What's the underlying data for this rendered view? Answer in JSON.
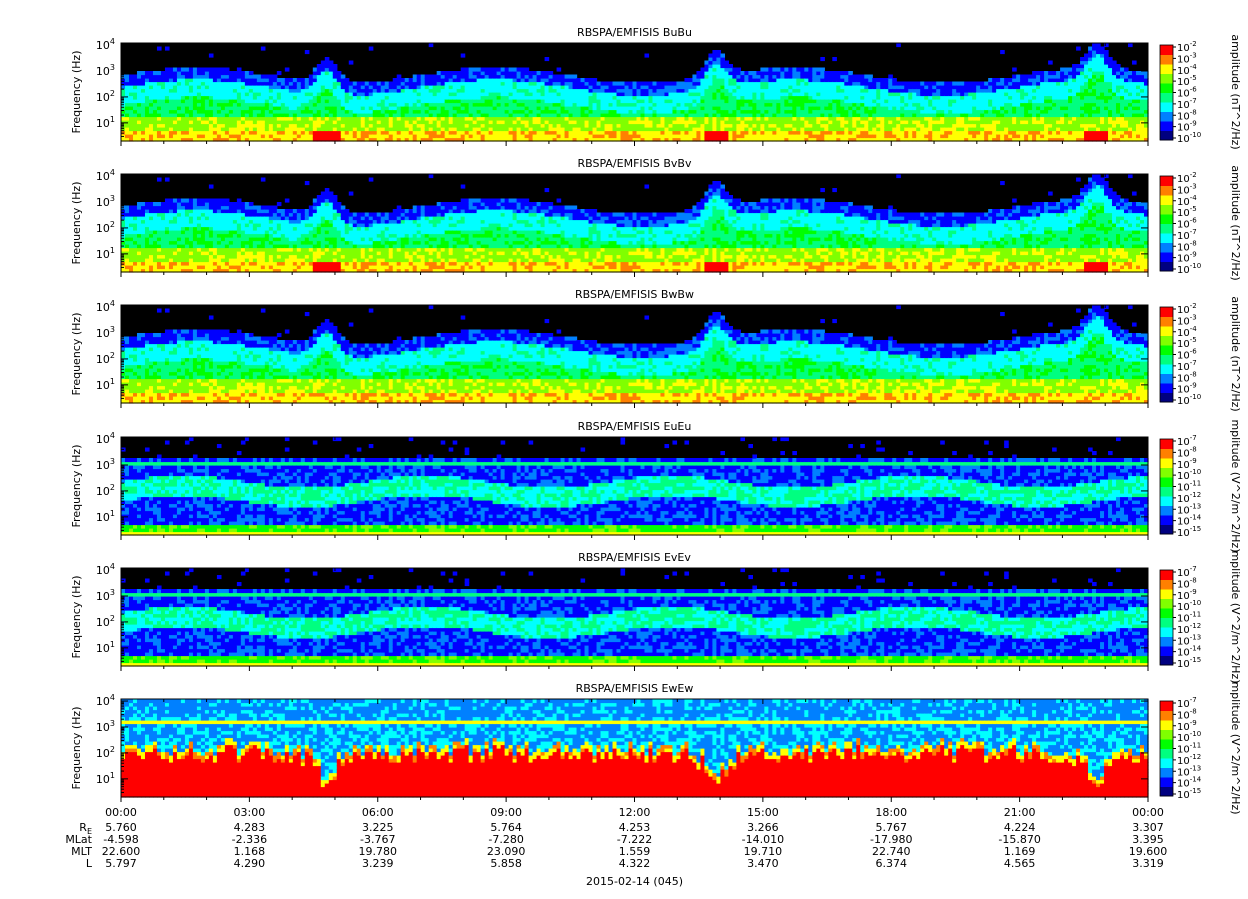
{
  "colors": {
    "background": "#000000",
    "scale": [
      "#000080",
      "#0000ff",
      "#0080ff",
      "#00ffff",
      "#00ff80",
      "#00ff00",
      "#80ff00",
      "#ffff00",
      "#ff8000",
      "#ff0000"
    ]
  },
  "chart_data": [
    {
      "type": "heatmap",
      "title": "RBSPA/EMFISIS  BuBu",
      "ylabel": "Frequency (Hz)",
      "yscale": "log",
      "ylim": [
        2,
        12000
      ],
      "yticks": [
        {
          "base": "10",
          "exp": "1",
          "v": 10
        },
        {
          "base": "10",
          "exp": "2",
          "v": 100
        },
        {
          "base": "10",
          "exp": "3",
          "v": 1000
        },
        {
          "base": "10",
          "exp": "4",
          "v": 10000
        }
      ],
      "colorbar": {
        "label": "amplitude (nT^2/Hz)",
        "ticks": [
          {
            "base": "10",
            "exp": "-2"
          },
          {
            "base": "10",
            "exp": "-3"
          },
          {
            "base": "10",
            "exp": "-4"
          },
          {
            "base": "10",
            "exp": "-5"
          },
          {
            "base": "10",
            "exp": "-6"
          },
          {
            "base": "10",
            "exp": "-7"
          },
          {
            "base": "10",
            "exp": "-8"
          },
          {
            "base": "10",
            "exp": "-9"
          },
          {
            "base": "10",
            "exp": "-10"
          }
        ]
      },
      "kind": "b"
    },
    {
      "type": "heatmap",
      "title": "RBSPA/EMFISIS  BvBv",
      "ylabel": "Frequency (Hz)",
      "yscale": "log",
      "ylim": [
        2,
        12000
      ],
      "yticks": [
        {
          "base": "10",
          "exp": "1",
          "v": 10
        },
        {
          "base": "10",
          "exp": "2",
          "v": 100
        },
        {
          "base": "10",
          "exp": "3",
          "v": 1000
        },
        {
          "base": "10",
          "exp": "4",
          "v": 10000
        }
      ],
      "colorbar": {
        "label": "amplitude (nT^2/Hz)",
        "ticks": [
          {
            "base": "10",
            "exp": "-2"
          },
          {
            "base": "10",
            "exp": "-3"
          },
          {
            "base": "10",
            "exp": "-4"
          },
          {
            "base": "10",
            "exp": "-5"
          },
          {
            "base": "10",
            "exp": "-6"
          },
          {
            "base": "10",
            "exp": "-7"
          },
          {
            "base": "10",
            "exp": "-8"
          },
          {
            "base": "10",
            "exp": "-9"
          },
          {
            "base": "10",
            "exp": "-10"
          }
        ]
      },
      "kind": "b"
    },
    {
      "type": "heatmap",
      "title": "RBSPA/EMFISIS  BwBw",
      "ylabel": "Frequency (Hz)",
      "yscale": "log",
      "ylim": [
        2,
        12000
      ],
      "yticks": [
        {
          "base": "10",
          "exp": "1",
          "v": 10
        },
        {
          "base": "10",
          "exp": "2",
          "v": 100
        },
        {
          "base": "10",
          "exp": "3",
          "v": 1000
        },
        {
          "base": "10",
          "exp": "4",
          "v": 10000
        }
      ],
      "colorbar": {
        "label": "amplitude (nT^2/Hz)",
        "ticks": [
          {
            "base": "10",
            "exp": "-2"
          },
          {
            "base": "10",
            "exp": "-3"
          },
          {
            "base": "10",
            "exp": "-4"
          },
          {
            "base": "10",
            "exp": "-5"
          },
          {
            "base": "10",
            "exp": "-6"
          },
          {
            "base": "10",
            "exp": "-7"
          },
          {
            "base": "10",
            "exp": "-8"
          },
          {
            "base": "10",
            "exp": "-9"
          },
          {
            "base": "10",
            "exp": "-10"
          }
        ]
      },
      "kind": "bw"
    },
    {
      "type": "heatmap",
      "title": "RBSPA/EMFISIS  EuEu",
      "ylabel": "Frequency (Hz)",
      "yscale": "log",
      "ylim": [
        2,
        12000
      ],
      "yticks": [
        {
          "base": "10",
          "exp": "1",
          "v": 10
        },
        {
          "base": "10",
          "exp": "2",
          "v": 100
        },
        {
          "base": "10",
          "exp": "3",
          "v": 1000
        },
        {
          "base": "10",
          "exp": "4",
          "v": 10000
        }
      ],
      "colorbar": {
        "label": "mplitude (V^2/m^2/Hz)",
        "ticks": [
          {
            "base": "10",
            "exp": "-7"
          },
          {
            "base": "10",
            "exp": "-8"
          },
          {
            "base": "10",
            "exp": "-9"
          },
          {
            "base": "10",
            "exp": "-10"
          },
          {
            "base": "10",
            "exp": "-11"
          },
          {
            "base": "10",
            "exp": "-12"
          },
          {
            "base": "10",
            "exp": "-13"
          },
          {
            "base": "10",
            "exp": "-14"
          },
          {
            "base": "10",
            "exp": "-15"
          }
        ]
      },
      "kind": "e"
    },
    {
      "type": "heatmap",
      "title": "RBSPA/EMFISIS  EvEv",
      "ylabel": "Frequency (Hz)",
      "yscale": "log",
      "ylim": [
        2,
        12000
      ],
      "yticks": [
        {
          "base": "10",
          "exp": "1",
          "v": 10
        },
        {
          "base": "10",
          "exp": "2",
          "v": 100
        },
        {
          "base": "10",
          "exp": "3",
          "v": 1000
        },
        {
          "base": "10",
          "exp": "4",
          "v": 10000
        }
      ],
      "colorbar": {
        "label": "mplitude (V^2/m^2/Hz)",
        "ticks": [
          {
            "base": "10",
            "exp": "-7"
          },
          {
            "base": "10",
            "exp": "-8"
          },
          {
            "base": "10",
            "exp": "-9"
          },
          {
            "base": "10",
            "exp": "-10"
          },
          {
            "base": "10",
            "exp": "-11"
          },
          {
            "base": "10",
            "exp": "-12"
          },
          {
            "base": "10",
            "exp": "-13"
          },
          {
            "base": "10",
            "exp": "-14"
          },
          {
            "base": "10",
            "exp": "-15"
          }
        ]
      },
      "kind": "e"
    },
    {
      "type": "heatmap",
      "title": "RBSPA/EMFISIS  EwEw",
      "ylabel": "Frequency (Hz)",
      "yscale": "log",
      "ylim": [
        2,
        12000
      ],
      "yticks": [
        {
          "base": "10",
          "exp": "1",
          "v": 10
        },
        {
          "base": "10",
          "exp": "2",
          "v": 100
        },
        {
          "base": "10",
          "exp": "3",
          "v": 1000
        },
        {
          "base": "10",
          "exp": "4",
          "v": 10000
        }
      ],
      "colorbar": {
        "label": "mplitude (V^2/m^2/Hz)",
        "ticks": [
          {
            "base": "10",
            "exp": "-7"
          },
          {
            "base": "10",
            "exp": "-8"
          },
          {
            "base": "10",
            "exp": "-9"
          },
          {
            "base": "10",
            "exp": "-10"
          },
          {
            "base": "10",
            "exp": "-11"
          },
          {
            "base": "10",
            "exp": "-12"
          },
          {
            "base": "10",
            "exp": "-13"
          },
          {
            "base": "10",
            "exp": "-14"
          },
          {
            "base": "10",
            "exp": "-15"
          }
        ]
      },
      "kind": "ew"
    }
  ],
  "x_axis": {
    "xlim_hours": [
      0,
      24
    ],
    "ticks": [
      {
        "label": "00:00",
        "hour": 0
      },
      {
        "label": "03:00",
        "hour": 3
      },
      {
        "label": "06:00",
        "hour": 6
      },
      {
        "label": "09:00",
        "hour": 9
      },
      {
        "label": "12:00",
        "hour": 12
      },
      {
        "label": "15:00",
        "hour": 15
      },
      {
        "label": "18:00",
        "hour": 18
      },
      {
        "label": "21:00",
        "hour": 21
      },
      {
        "label": "00:00",
        "hour": 24
      }
    ],
    "date_label": "2015-02-14 (045)"
  },
  "ephemeris": [
    {
      "name": "R",
      "sub": "E",
      "values": [
        "5.760",
        "4.283",
        "3.225",
        "5.764",
        "4.253",
        "3.266",
        "5.767",
        "4.224",
        "3.307"
      ]
    },
    {
      "name": "MLat",
      "values": [
        "-4.598",
        "-2.336",
        "-3.767",
        "-7.280",
        "-7.222",
        "-14.010",
        "-17.980",
        "-15.870",
        "3.395"
      ]
    },
    {
      "name": "MLT",
      "values": [
        "22.600",
        "1.168",
        "19.780",
        "23.090",
        "1.559",
        "19.710",
        "22.740",
        "1.169",
        "19.600"
      ]
    },
    {
      "name": "L",
      "values": [
        "5.797",
        "4.290",
        "3.239",
        "5.858",
        "4.322",
        "3.470",
        "6.374",
        "4.565",
        "3.319"
      ]
    }
  ]
}
